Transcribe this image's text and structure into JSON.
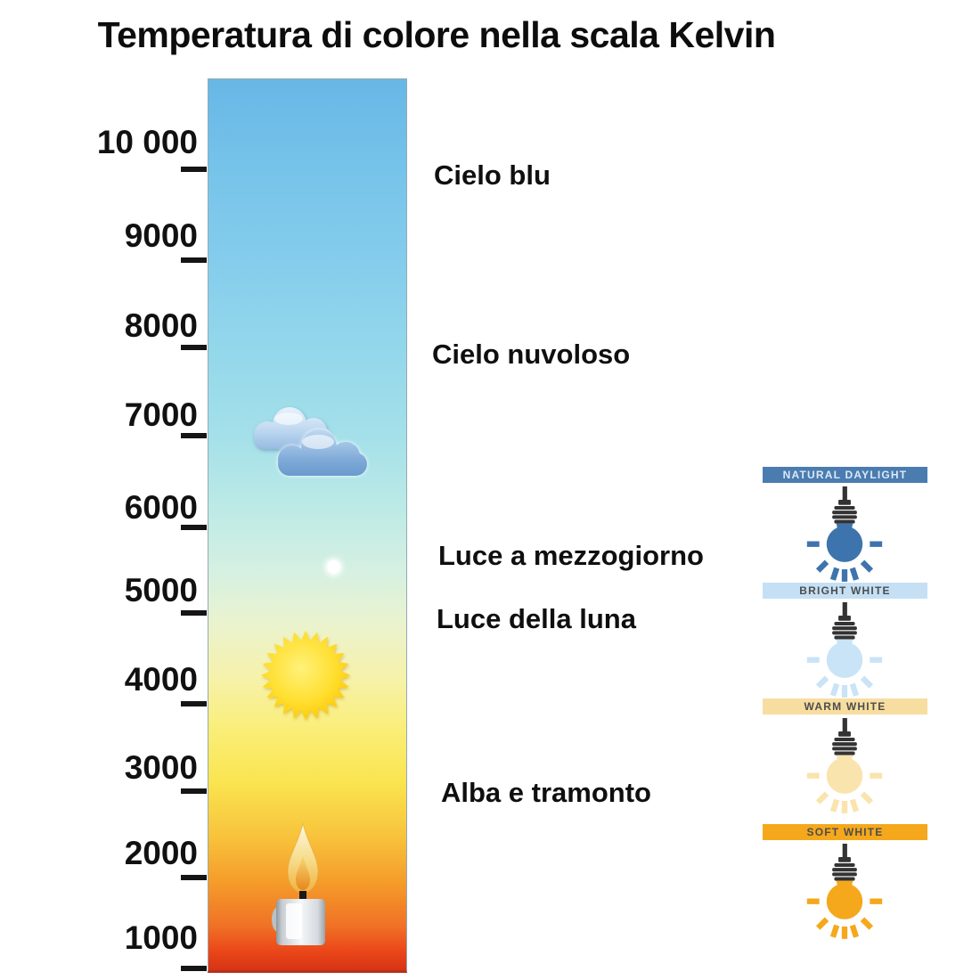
{
  "title": "Temperatura di colore nella scala Kelvin",
  "scale": {
    "tick_labels": [
      "10 000",
      "9000",
      "8000",
      "7000",
      "6000",
      "5000",
      "4000",
      "3000",
      "2000",
      "1000"
    ]
  },
  "annotations": [
    "Cielo blu",
    "Cielo nuvoloso",
    "Luce a mezzogiorno",
    "Luce della luna",
    "Alba e tramonto"
  ],
  "bar": {
    "icons": [
      "clouds-icon",
      "moon-icon",
      "sun-icon",
      "candle-icon"
    ],
    "gradient_top_color": "#67b7e6",
    "gradient_bottom_color": "#d63415"
  },
  "bulbs": [
    {
      "label": "NATURAL DAYLIGHT",
      "banner_color": "#4a7cb0",
      "text_color": "#dce9f5",
      "bulb_color": "#3e74ae"
    },
    {
      "label": "BRIGHT WHITE",
      "banner_color": "#c5e0f5",
      "text_color": "#4d4d4d",
      "bulb_color": "#c9e3f7"
    },
    {
      "label": "WARM WHITE",
      "banner_color": "#f7dea0",
      "text_color": "#4d4d4d",
      "bulb_color": "#fae4ad"
    },
    {
      "label": "SOFT WHITE",
      "banner_color": "#f5a81c",
      "text_color": "#4d4d4d",
      "bulb_color": "#f5a81c"
    }
  ],
  "scale_mapping": [
    {
      "approx_kelvin": 10000,
      "label": "Cielo blu"
    },
    {
      "approx_kelvin": 8000,
      "label": "Cielo nuvoloso"
    },
    {
      "approx_kelvin": 6800,
      "icon": "clouds-icon"
    },
    {
      "approx_kelvin": 5600,
      "label": "Luce a mezzogiorno"
    },
    {
      "approx_kelvin": 5400,
      "icon": "moon-icon"
    },
    {
      "approx_kelvin": 5000,
      "label": "Luce della luna"
    },
    {
      "approx_kelvin": 4300,
      "icon": "sun-icon"
    },
    {
      "approx_kelvin": 3000,
      "label": "Alba e tramonto"
    },
    {
      "approx_kelvin": 1500,
      "icon": "candle-icon"
    }
  ]
}
